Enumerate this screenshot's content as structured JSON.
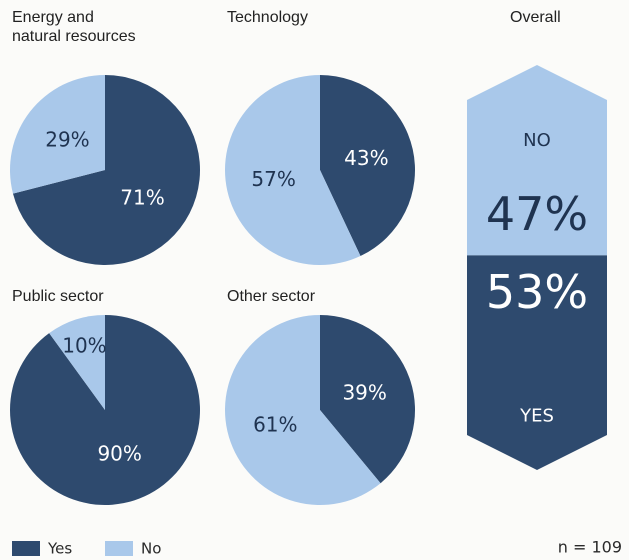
{
  "chart_data": [
    {
      "type": "pie",
      "title": "Energy and\nnatural resources",
      "categories": [
        "Yes",
        "No"
      ],
      "values": [
        71,
        29
      ],
      "value_labels": [
        "71%",
        "29%"
      ],
      "colors": [
        "#2e4a6e",
        "#a9c8ea"
      ]
    },
    {
      "type": "pie",
      "title": "Technology",
      "categories": [
        "Yes",
        "No"
      ],
      "values": [
        43,
        57
      ],
      "value_labels": [
        "43%",
        "57%"
      ],
      "colors": [
        "#2e4a6e",
        "#a9c8ea"
      ]
    },
    {
      "type": "pie",
      "title": "Public sector",
      "categories": [
        "Yes",
        "No"
      ],
      "values": [
        90,
        10
      ],
      "value_labels": [
        "90%",
        "10%"
      ],
      "colors": [
        "#2e4a6e",
        "#a9c8ea"
      ]
    },
    {
      "type": "pie",
      "title": "Other sector",
      "categories": [
        "Yes",
        "No"
      ],
      "values": [
        39,
        61
      ],
      "value_labels": [
        "39%",
        "61%"
      ],
      "colors": [
        "#2e4a6e",
        "#a9c8ea"
      ]
    },
    {
      "type": "column",
      "title": "Overall",
      "categories": [
        "NO",
        "YES"
      ],
      "values": [
        47,
        53
      ],
      "value_labels": [
        "47%",
        "53%"
      ],
      "colors": [
        "#a9c8ea",
        "#2e4a6e"
      ]
    }
  ],
  "legend": [
    {
      "name": "Yes",
      "color": "#2e4a6e"
    },
    {
      "name": "No",
      "color": "#a9c8ea"
    }
  ],
  "note": "n = 109"
}
